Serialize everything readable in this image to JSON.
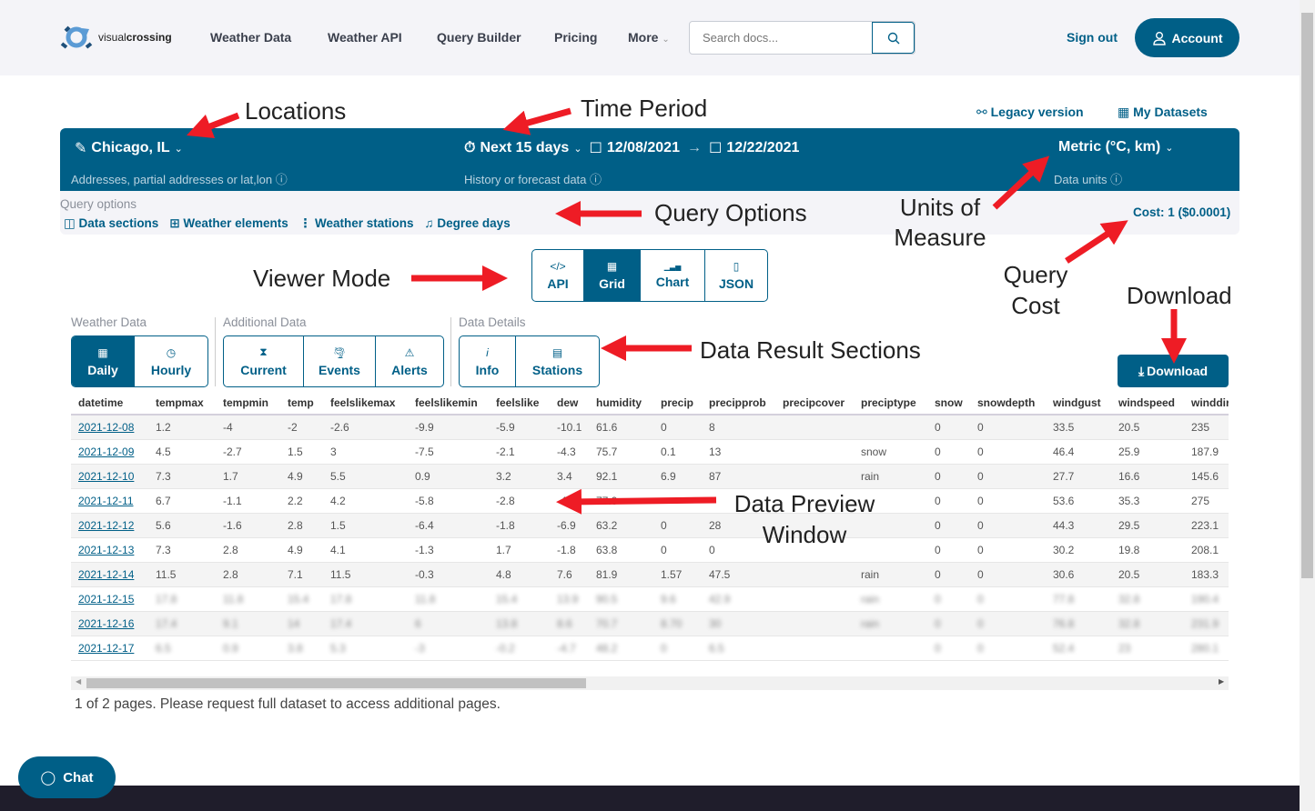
{
  "nav": {
    "logo_text_light": "visual",
    "logo_text_bold": "crossing",
    "links": [
      "Weather Data",
      "Weather API",
      "Query Builder",
      "Pricing",
      "More"
    ],
    "search_placeholder": "Search docs...",
    "sign_out": "Sign out",
    "account": "Account"
  },
  "top_links": {
    "legacy": "Legacy version",
    "datasets": "My Datasets"
  },
  "query": {
    "location": "Chicago, IL",
    "location_hint": "Addresses, partial addresses or lat,lon",
    "period": "Next 15 days",
    "start": "12/08/2021",
    "end": "12/22/2021",
    "period_hint": "History or forecast data",
    "units": "Metric (°C, km)",
    "units_hint": "Data units"
  },
  "options": {
    "label": "Query options",
    "items": [
      "Data sections",
      "Weather elements",
      "Weather stations",
      "Degree days"
    ],
    "cost": "Cost: 1 ($0.0001)"
  },
  "viewer": {
    "buttons": [
      {
        "icon": "</>",
        "label": "API"
      },
      {
        "icon": "▦",
        "label": "Grid"
      },
      {
        "icon": "▁▃▅",
        "label": "Chart"
      },
      {
        "icon": "▯",
        "label": "JSON"
      }
    ],
    "active": "Grid"
  },
  "sections": {
    "weather_label": "Weather Data",
    "weather": [
      {
        "icon": "▦",
        "label": "Daily"
      },
      {
        "icon": "◷",
        "label": "Hourly"
      }
    ],
    "additional_label": "Additional Data",
    "additional": [
      {
        "icon": "⧗",
        "label": "Current"
      },
      {
        "icon": "🌪",
        "label": "Events"
      },
      {
        "icon": "⚠",
        "label": "Alerts"
      }
    ],
    "details_label": "Data Details",
    "details": [
      {
        "icon": "i",
        "label": "Info"
      },
      {
        "icon": "▤",
        "label": "Stations"
      }
    ],
    "active": "Daily"
  },
  "download": "Download",
  "table": {
    "columns": [
      "datetime",
      "tempmax",
      "tempmin",
      "temp",
      "feelslikemax",
      "feelslikemin",
      "feelslike",
      "dew",
      "humidity",
      "precip",
      "precipprob",
      "precipcover",
      "preciptype",
      "snow",
      "snowdepth",
      "windgust",
      "windspeed",
      "winddir"
    ],
    "rows": [
      [
        "2021-12-08",
        "1.2",
        "-4",
        "-2",
        "-2.6",
        "-9.9",
        "-5.9",
        "-10.1",
        "61.6",
        "0",
        "8",
        "",
        "",
        "0",
        "0",
        "33.5",
        "20.5",
        "235"
      ],
      [
        "2021-12-09",
        "4.5",
        "-2.7",
        "1.5",
        "3",
        "-7.5",
        "-2.1",
        "-4.3",
        "75.7",
        "0.1",
        "13",
        "",
        "snow",
        "0",
        "0",
        "46.4",
        "25.9",
        "187.9"
      ],
      [
        "2021-12-10",
        "7.3",
        "1.7",
        "4.9",
        "5.5",
        "0.9",
        "3.2",
        "3.4",
        "92.1",
        "6.9",
        "87",
        "",
        "rain",
        "0",
        "0",
        "27.7",
        "16.6",
        "145.6"
      ],
      [
        "2021-12-11",
        "6.7",
        "-1.1",
        "2.2",
        "4.2",
        "-5.8",
        "-2.8",
        "-4.0",
        "77.0",
        "",
        "",
        "",
        "",
        "0",
        "0",
        "53.6",
        "35.3",
        "275"
      ],
      [
        "2021-12-12",
        "5.6",
        "-1.6",
        "2.8",
        "1.5",
        "-6.4",
        "-1.8",
        "-6.9",
        "63.2",
        "0",
        "28",
        "",
        "",
        "0",
        "0",
        "44.3",
        "29.5",
        "223.1"
      ],
      [
        "2021-12-13",
        "7.3",
        "2.8",
        "4.9",
        "4.1",
        "-1.3",
        "1.7",
        "-1.8",
        "63.8",
        "0",
        "0",
        "",
        "",
        "0",
        "0",
        "30.2",
        "19.8",
        "208.1"
      ],
      [
        "2021-12-14",
        "11.5",
        "2.8",
        "7.1",
        "11.5",
        "-0.3",
        "4.8",
        "7.6",
        "81.9",
        "1.57",
        "47.5",
        "",
        "rain",
        "0",
        "0",
        "30.6",
        "20.5",
        "183.3"
      ],
      [
        "2021-12-15",
        "17.8",
        "11.8",
        "15.4",
        "17.8",
        "11.8",
        "15.4",
        "13.9",
        "90.5",
        "9.6",
        "42.9",
        "",
        "rain",
        "0",
        "0",
        "77.8",
        "32.8",
        "190.4"
      ],
      [
        "2021-12-16",
        "17.4",
        "9.1",
        "14",
        "17.4",
        "6",
        "13.8",
        "8.6",
        "70.7",
        "8.70",
        "30",
        "",
        "rain",
        "0",
        "0",
        "76.8",
        "32.8",
        "231.9"
      ],
      [
        "2021-12-17",
        "6.5",
        "0.9",
        "3.8",
        "5.3",
        "-3",
        "-0.2",
        "-4.7",
        "48.2",
        "0",
        "6.5",
        "",
        "",
        "0",
        "0",
        "52.4",
        "23",
        "280.1"
      ]
    ],
    "blurred_from": 7
  },
  "pagination": "1 of 2 pages. Please request full dataset to access additional pages.",
  "chat": "Chat",
  "annotations": {
    "locations": "Locations",
    "time_period": "Time Period",
    "query_options": "Query Options",
    "units_1": "Units of",
    "units_2": "Measure",
    "cost_1": "Query",
    "cost_2": "Cost",
    "viewer_mode": "Viewer Mode",
    "download": "Download",
    "result_sections": "Data Result Sections",
    "preview_1": "Data Preview",
    "preview_2": "Window"
  },
  "colors": {
    "primary": "#005f87",
    "annotation_arrow": "#ee1c25"
  }
}
